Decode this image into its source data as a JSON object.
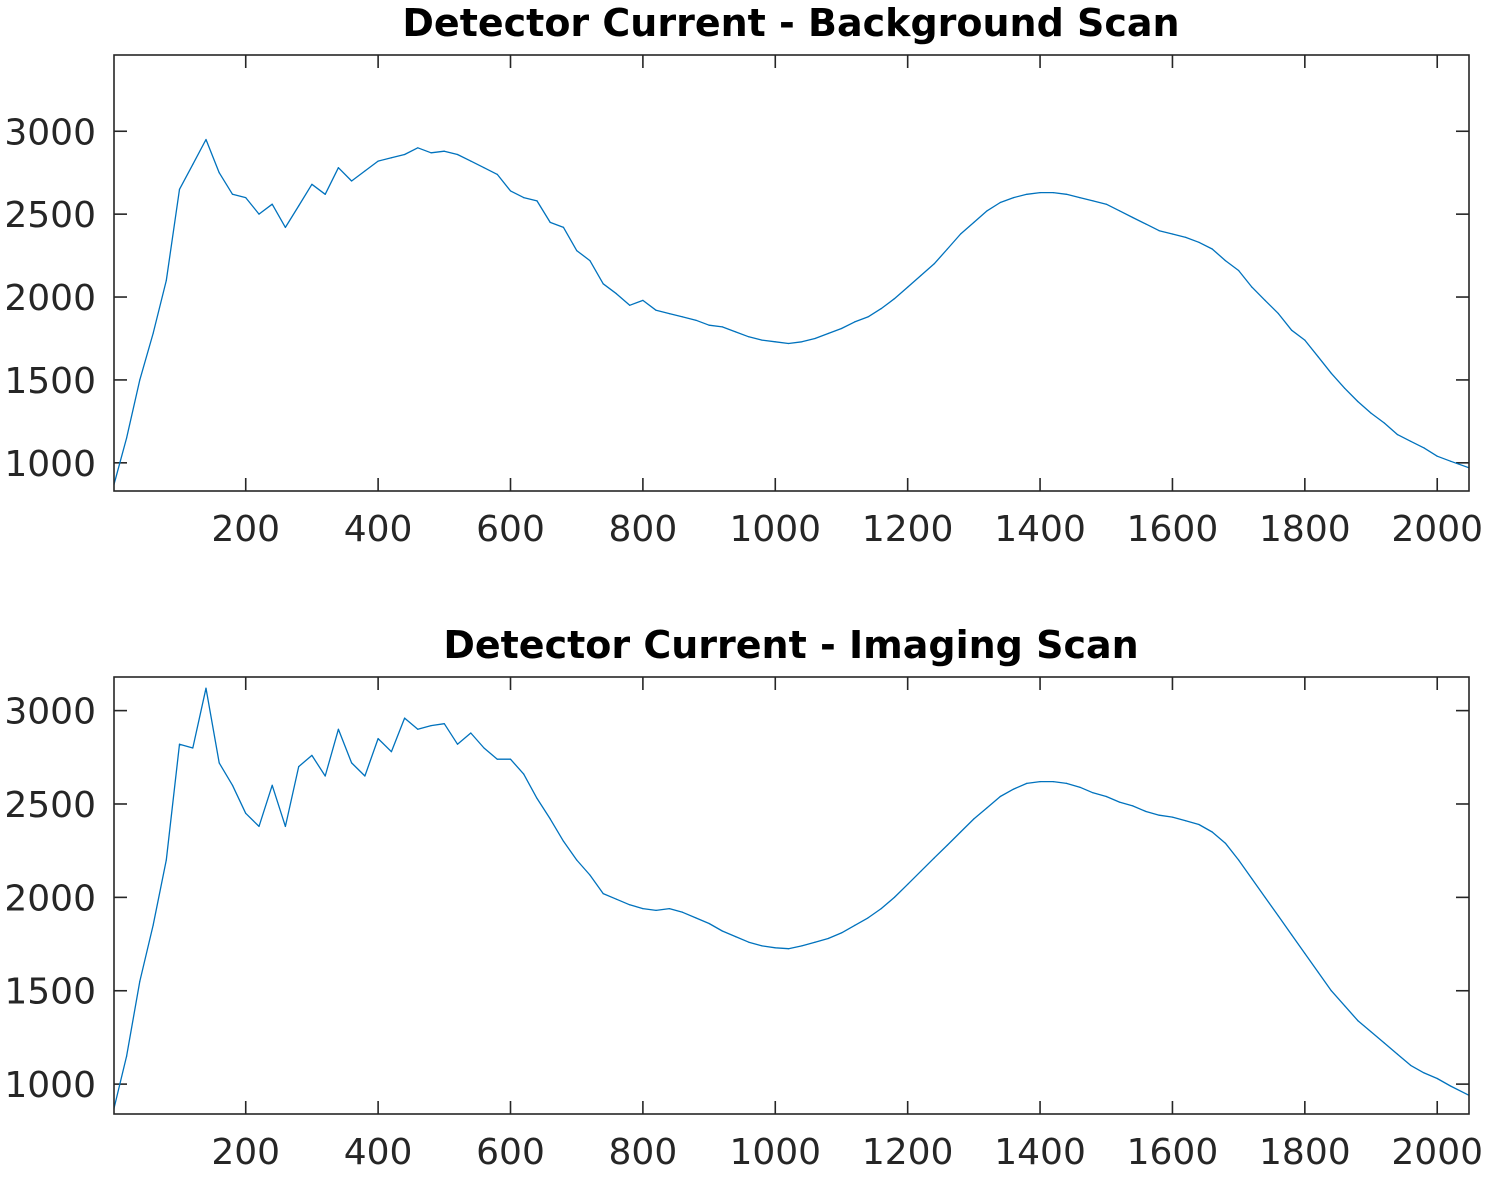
{
  "chart_data": [
    {
      "type": "line",
      "title": "Detector Current - Background Scan",
      "xlabel": "",
      "ylabel": "",
      "xlim": [
        1,
        2048
      ],
      "ylim": [
        830,
        3460
      ],
      "xticks": [
        200,
        400,
        600,
        800,
        1000,
        1200,
        1400,
        1600,
        1800,
        2000
      ],
      "xtick_labels": [
        "200",
        "400",
        "600",
        "800",
        "1000",
        "1200",
        "1400",
        "1600",
        "1800",
        "2000"
      ],
      "yticks": [
        1000,
        1500,
        2000,
        2500,
        3000
      ],
      "ytick_labels": [
        "1000",
        "1500",
        "2000",
        "2500",
        "3000"
      ],
      "grid": false,
      "legend": "none",
      "series_color": "#0072BD",
      "series": [
        {
          "x": [
            1,
            20,
            40,
            60,
            80,
            100,
            120,
            140,
            160,
            180,
            200,
            220,
            240,
            260,
            280,
            300,
            320,
            340,
            360,
            380,
            400,
            420,
            440,
            460,
            480,
            500,
            520,
            540,
            560,
            580,
            600,
            620,
            640,
            660,
            680,
            700,
            720,
            740,
            760,
            780,
            800,
            820,
            840,
            860,
            880,
            900,
            920,
            940,
            960,
            980,
            1000,
            1020,
            1040,
            1060,
            1080,
            1100,
            1120,
            1140,
            1160,
            1180,
            1200,
            1220,
            1240,
            1260,
            1280,
            1300,
            1320,
            1340,
            1360,
            1380,
            1400,
            1420,
            1440,
            1460,
            1480,
            1500,
            1520,
            1540,
            1560,
            1580,
            1600,
            1620,
            1640,
            1660,
            1680,
            1700,
            1720,
            1740,
            1760,
            1780,
            1800,
            1820,
            1840,
            1860,
            1880,
            1900,
            1920,
            1940,
            1960,
            1980,
            2000,
            2020,
            2048
          ],
          "y": [
            870,
            1150,
            1500,
            1780,
            2100,
            2650,
            2800,
            2950,
            2750,
            2620,
            2600,
            2500,
            2560,
            2420,
            2550,
            2680,
            2620,
            2780,
            2700,
            2760,
            2820,
            2840,
            2860,
            2900,
            2870,
            2880,
            2860,
            2820,
            2780,
            2740,
            2640,
            2600,
            2580,
            2450,
            2420,
            2280,
            2220,
            2080,
            2020,
            1950,
            1980,
            1920,
            1900,
            1880,
            1860,
            1830,
            1820,
            1790,
            1760,
            1740,
            1730,
            1720,
            1730,
            1750,
            1780,
            1810,
            1850,
            1880,
            1930,
            1990,
            2060,
            2130,
            2200,
            2290,
            2380,
            2450,
            2520,
            2570,
            2600,
            2620,
            2630,
            2630,
            2620,
            2600,
            2580,
            2560,
            2520,
            2480,
            2440,
            2400,
            2380,
            2360,
            2330,
            2290,
            2220,
            2160,
            2060,
            1980,
            1900,
            1800,
            1740,
            1640,
            1540,
            1450,
            1370,
            1300,
            1240,
            1170,
            1130,
            1090,
            1040,
            1010,
            970
          ]
        }
      ]
    },
    {
      "type": "line",
      "title": "Detector Current - Imaging Scan",
      "xlabel": "",
      "ylabel": "",
      "xlim": [
        1,
        2048
      ],
      "ylim": [
        840,
        3180
      ],
      "xticks": [
        200,
        400,
        600,
        800,
        1000,
        1200,
        1400,
        1600,
        1800,
        2000
      ],
      "xtick_labels": [
        "200",
        "400",
        "600",
        "800",
        "1000",
        "1200",
        "1400",
        "1600",
        "1800",
        "2000"
      ],
      "yticks": [
        1000,
        1500,
        2000,
        2500,
        3000
      ],
      "ytick_labels": [
        "1000",
        "1500",
        "2000",
        "2500",
        "3000"
      ],
      "grid": false,
      "legend": "none",
      "series_color": "#0072BD",
      "series": [
        {
          "x": [
            1,
            20,
            40,
            60,
            80,
            100,
            120,
            140,
            160,
            180,
            200,
            220,
            240,
            260,
            280,
            300,
            320,
            340,
            360,
            380,
            400,
            420,
            440,
            460,
            480,
            500,
            520,
            540,
            560,
            580,
            600,
            620,
            640,
            660,
            680,
            700,
            720,
            740,
            760,
            780,
            800,
            820,
            840,
            860,
            880,
            900,
            920,
            940,
            960,
            980,
            1000,
            1020,
            1040,
            1060,
            1080,
            1100,
            1120,
            1140,
            1160,
            1180,
            1200,
            1220,
            1240,
            1260,
            1280,
            1300,
            1320,
            1340,
            1360,
            1380,
            1400,
            1420,
            1440,
            1460,
            1480,
            1500,
            1520,
            1540,
            1560,
            1580,
            1600,
            1620,
            1640,
            1660,
            1680,
            1700,
            1720,
            1740,
            1760,
            1780,
            1800,
            1820,
            1840,
            1860,
            1880,
            1900,
            1920,
            1940,
            1960,
            1980,
            2000,
            2020,
            2048
          ],
          "y": [
            870,
            1150,
            1550,
            1850,
            2200,
            2820,
            2800,
            3120,
            2720,
            2600,
            2450,
            2380,
            2600,
            2380,
            2700,
            2760,
            2650,
            2900,
            2720,
            2650,
            2850,
            2780,
            2960,
            2900,
            2920,
            2930,
            2820,
            2880,
            2800,
            2740,
            2740,
            2660,
            2530,
            2420,
            2300,
            2200,
            2120,
            2020,
            1990,
            1960,
            1940,
            1930,
            1940,
            1920,
            1890,
            1860,
            1820,
            1790,
            1760,
            1740,
            1730,
            1725,
            1740,
            1760,
            1780,
            1810,
            1850,
            1890,
            1940,
            2000,
            2070,
            2140,
            2210,
            2280,
            2350,
            2420,
            2480,
            2540,
            2580,
            2610,
            2620,
            2620,
            2610,
            2590,
            2560,
            2540,
            2510,
            2490,
            2460,
            2440,
            2430,
            2410,
            2390,
            2350,
            2290,
            2200,
            2100,
            2000,
            1900,
            1800,
            1700,
            1600,
            1500,
            1420,
            1340,
            1280,
            1220,
            1160,
            1100,
            1060,
            1030,
            990,
            940
          ]
        }
      ]
    }
  ]
}
